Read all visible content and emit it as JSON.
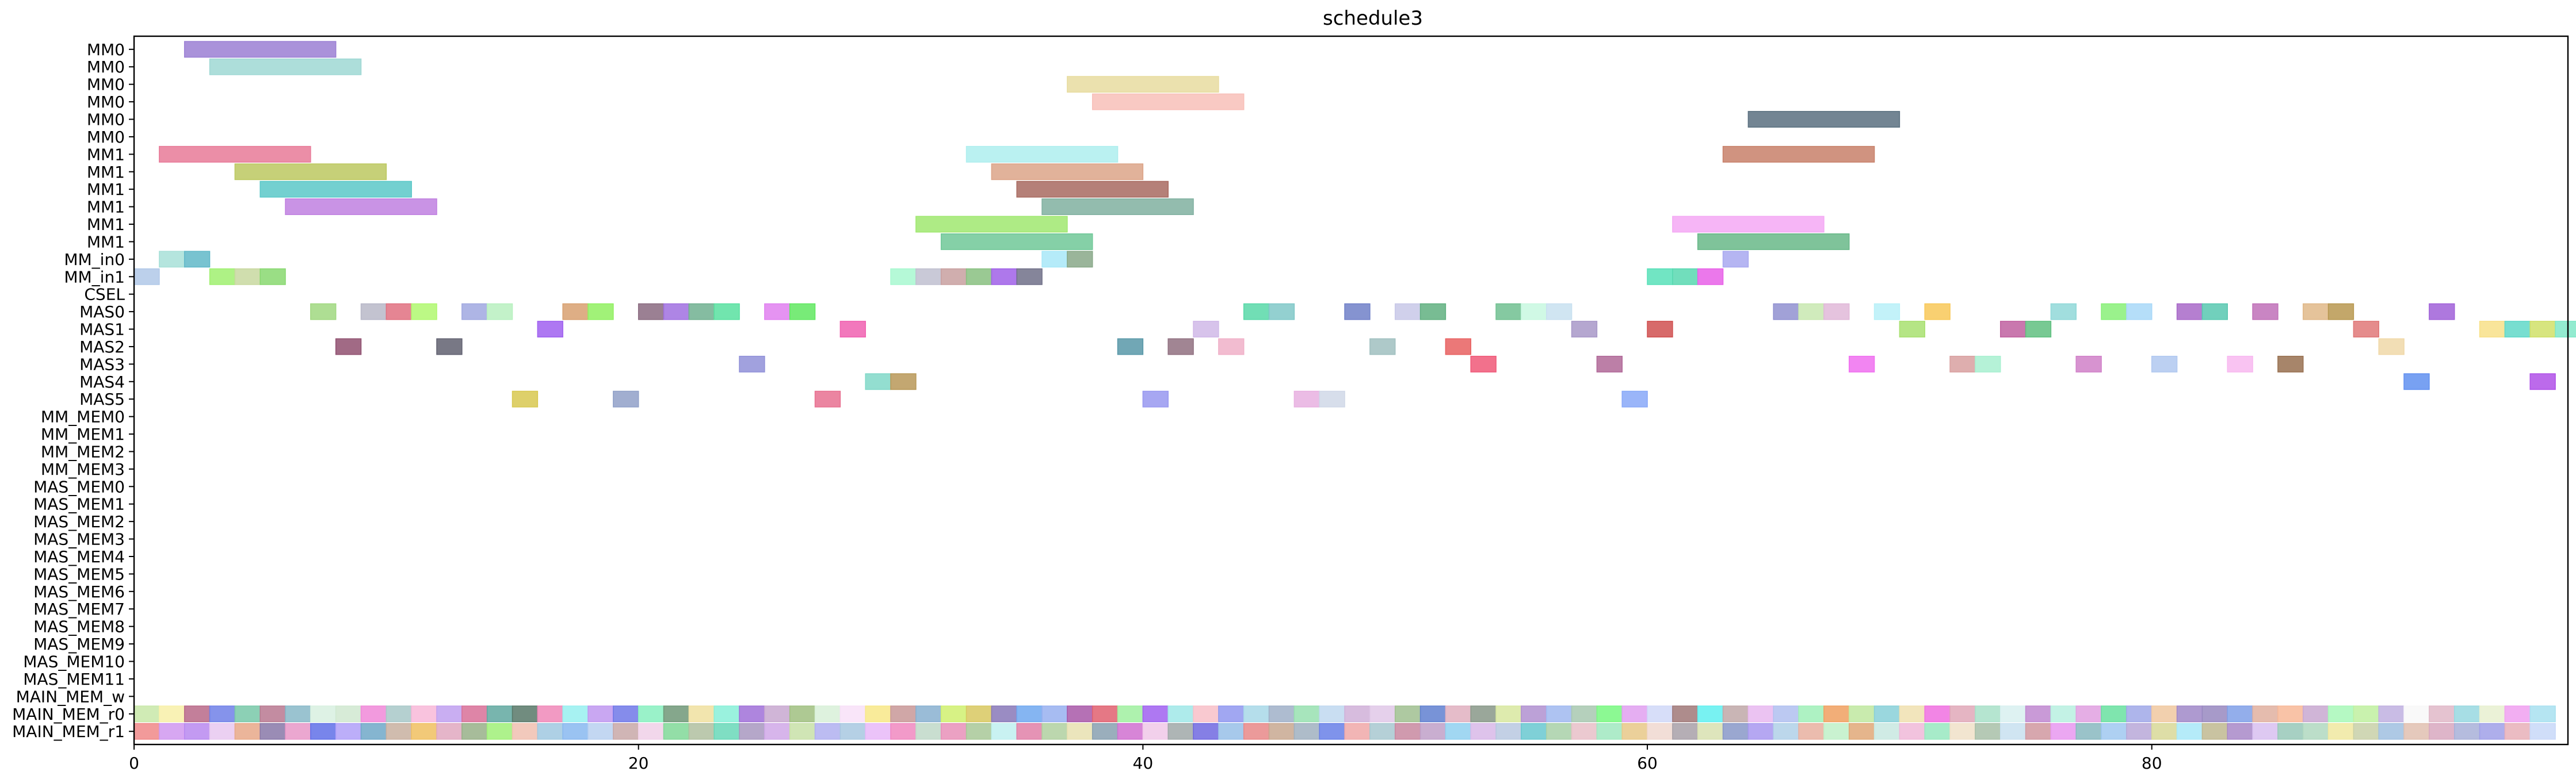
{
  "chart_data": {
    "type": "gantt",
    "title": "schedule3",
    "xlabel": "",
    "ylabel": "",
    "xlim": [
      0,
      96.5
    ],
    "xticks": [
      0,
      20,
      40,
      60,
      80
    ],
    "grid": false,
    "rows": [
      "MM0",
      "MM0",
      "MM0",
      "MM0",
      "MM0",
      "MM0",
      "MM1",
      "MM1",
      "MM1",
      "MM1",
      "MM1",
      "MM1",
      "MM_in0",
      "MM_in1",
      "CSEL",
      "MAS0",
      "MAS1",
      "MAS2",
      "MAS3",
      "MAS4",
      "MAS5",
      "MM_MEM0",
      "MM_MEM1",
      "MM_MEM2",
      "MM_MEM3",
      "MAS_MEM0",
      "MAS_MEM1",
      "MAS_MEM2",
      "MAS_MEM3",
      "MAS_MEM4",
      "MAS_MEM5",
      "MAS_MEM6",
      "MAS_MEM7",
      "MAS_MEM8",
      "MAS_MEM9",
      "MAS_MEM10",
      "MAS_MEM11",
      "MAIN_MEM_w",
      "MAIN_MEM_r0",
      "MAIN_MEM_r1"
    ],
    "tasks": [
      {
        "row": 0,
        "start": 2,
        "end": 8,
        "color": "#9b7fd4"
      },
      {
        "row": 1,
        "start": 3,
        "end": 9,
        "color": "#9fd8d4"
      },
      {
        "row": 2,
        "start": 37,
        "end": 43,
        "color": "#e8dca0"
      },
      {
        "row": 3,
        "start": 38,
        "end": 44,
        "color": "#f8bfb8"
      },
      {
        "row": 4,
        "start": 64,
        "end": 70,
        "color": "#5a7080"
      },
      {
        "row": 6,
        "start": 1,
        "end": 7,
        "color": "#e87a98"
      },
      {
        "row": 6,
        "start": 33,
        "end": 39,
        "color": "#aeeeee"
      },
      {
        "row": 6,
        "start": 63,
        "end": 69,
        "color": "#c8806a"
      },
      {
        "row": 7,
        "start": 4,
        "end": 10,
        "color": "#bcc860"
      },
      {
        "row": 7,
        "start": 34,
        "end": 40,
        "color": "#dca488"
      },
      {
        "row": 8,
        "start": 5,
        "end": 11,
        "color": "#5ac8c8"
      },
      {
        "row": 8,
        "start": 35,
        "end": 41,
        "color": "#a86a60"
      },
      {
        "row": 9,
        "start": 6,
        "end": 12,
        "color": "#c080e0"
      },
      {
        "row": 9,
        "start": 36,
        "end": 42,
        "color": "#80b0a0"
      },
      {
        "row": 10,
        "start": 31,
        "end": 37,
        "color": "#a0e870"
      },
      {
        "row": 10,
        "start": 61,
        "end": 67,
        "color": "#f4a8f4"
      },
      {
        "row": 11,
        "start": 32,
        "end": 38,
        "color": "#70c898"
      },
      {
        "row": 11,
        "start": 62,
        "end": 68,
        "color": "#68b888"
      },
      {
        "row": 12,
        "start": 1,
        "end": 2,
        "color": "#a8e0d8"
      },
      {
        "row": 12,
        "start": 2,
        "end": 3,
        "color": "#60b8c8"
      },
      {
        "row": 12,
        "start": 36,
        "end": 37,
        "color": "#a8e8f8"
      },
      {
        "row": 12,
        "start": 37,
        "end": 38,
        "color": "#88a888"
      },
      {
        "row": 12,
        "start": 63,
        "end": 64,
        "color": "#a8a8f0"
      },
      {
        "row": 13,
        "start": 0,
        "end": 1,
        "color": "#b0c8e8"
      },
      {
        "row": 13,
        "start": 3,
        "end": 4,
        "color": "#a0f070"
      },
      {
        "row": 13,
        "start": 4,
        "end": 5,
        "color": "#c8d8a0"
      },
      {
        "row": 13,
        "start": 5,
        "end": 6,
        "color": "#88d870"
      },
      {
        "row": 13,
        "start": 30,
        "end": 31,
        "color": "#a8f8d0"
      },
      {
        "row": 13,
        "start": 31,
        "end": 32,
        "color": "#c0c0d0"
      },
      {
        "row": 13,
        "start": 32,
        "end": 33,
        "color": "#c8a0a0"
      },
      {
        "row": 13,
        "start": 33,
        "end": 34,
        "color": "#88c080"
      },
      {
        "row": 13,
        "start": 34,
        "end": 35,
        "color": "#a060e8"
      },
      {
        "row": 13,
        "start": 35,
        "end": 36,
        "color": "#707088"
      },
      {
        "row": 13,
        "start": 60,
        "end": 61,
        "color": "#58e0b8"
      },
      {
        "row": 13,
        "start": 61,
        "end": 62,
        "color": "#58d8b0"
      },
      {
        "row": 13,
        "start": 62,
        "end": 63,
        "color": "#e860e8"
      },
      {
        "row": 15,
        "start": 7,
        "end": 8,
        "color": "#a0d880"
      },
      {
        "row": 15,
        "start": 9,
        "end": 10,
        "color": "#b8b8c8"
      },
      {
        "row": 15,
        "start": 10,
        "end": 11,
        "color": "#e07080"
      },
      {
        "row": 15,
        "start": 11,
        "end": 12,
        "color": "#b0f870"
      },
      {
        "row": 15,
        "start": 13,
        "end": 14,
        "color": "#a0a8e0"
      },
      {
        "row": 15,
        "start": 14,
        "end": 15,
        "color": "#b8f0c0"
      },
      {
        "row": 15,
        "start": 17,
        "end": 18,
        "color": "#d8a070"
      },
      {
        "row": 15,
        "start": 18,
        "end": 19,
        "color": "#90f060"
      },
      {
        "row": 15,
        "start": 20,
        "end": 21,
        "color": "#8a6a80"
      },
      {
        "row": 15,
        "start": 21,
        "end": 22,
        "color": "#a070e0"
      },
      {
        "row": 15,
        "start": 22,
        "end": 23,
        "color": "#70b090"
      },
      {
        "row": 15,
        "start": 23,
        "end": 24,
        "color": "#58e0a0"
      },
      {
        "row": 15,
        "start": 25,
        "end": 26,
        "color": "#e080f0"
      },
      {
        "row": 15,
        "start": 26,
        "end": 27,
        "color": "#60e860"
      },
      {
        "row": 15,
        "start": 44,
        "end": 45,
        "color": "#58d8a8"
      },
      {
        "row": 15,
        "start": 45,
        "end": 46,
        "color": "#80c8c8"
      },
      {
        "row": 15,
        "start": 48,
        "end": 49,
        "color": "#7080c8"
      },
      {
        "row": 15,
        "start": 50,
        "end": 51,
        "color": "#c8c8e8"
      },
      {
        "row": 15,
        "start": 51,
        "end": 52,
        "color": "#60b080"
      },
      {
        "row": 15,
        "start": 54,
        "end": 55,
        "color": "#70c090"
      },
      {
        "row": 15,
        "start": 55,
        "end": 56,
        "color": "#c8f8e0"
      },
      {
        "row": 15,
        "start": 56,
        "end": 57,
        "color": "#c8e0f0"
      },
      {
        "row": 15,
        "start": 65,
        "end": 66,
        "color": "#9090d0"
      },
      {
        "row": 15,
        "start": 66,
        "end": 67,
        "color": "#c8e8b0"
      },
      {
        "row": 15,
        "start": 67,
        "end": 68,
        "color": "#e0b8d8"
      },
      {
        "row": 15,
        "start": 69,
        "end": 70,
        "color": "#b8f0f8"
      },
      {
        "row": 15,
        "start": 71,
        "end": 72,
        "color": "#f8c858"
      },
      {
        "row": 15,
        "start": 76,
        "end": 77,
        "color": "#90d8d8"
      },
      {
        "row": 15,
        "start": 78,
        "end": 79,
        "color": "#88f078"
      },
      {
        "row": 15,
        "start": 79,
        "end": 80,
        "color": "#a8d8f8"
      },
      {
        "row": 15,
        "start": 81,
        "end": 82,
        "color": "#a868c8"
      },
      {
        "row": 15,
        "start": 82,
        "end": 83,
        "color": "#58c8b0"
      },
      {
        "row": 15,
        "start": 84,
        "end": 85,
        "color": "#c070b8"
      },
      {
        "row": 15,
        "start": 86,
        "end": 87,
        "color": "#e0b888"
      },
      {
        "row": 15,
        "start": 87,
        "end": 88,
        "color": "#b89850"
      },
      {
        "row": 15,
        "start": 91,
        "end": 92,
        "color": "#a060d8"
      },
      {
        "row": 16,
        "start": 16,
        "end": 17,
        "color": "#a060f0"
      },
      {
        "row": 16,
        "start": 28,
        "end": 29,
        "color": "#f060b0"
      },
      {
        "row": 16,
        "start": 42,
        "end": 43,
        "color": "#d0b8e8"
      },
      {
        "row": 16,
        "start": 57,
        "end": 58,
        "color": "#a898c8"
      },
      {
        "row": 16,
        "start": 60,
        "end": 61,
        "color": "#d05050"
      },
      {
        "row": 16,
        "start": 70,
        "end": 71,
        "color": "#a8e070"
      },
      {
        "row": 16,
        "start": 74,
        "end": 75,
        "color": "#c060a0"
      },
      {
        "row": 16,
        "start": 75,
        "end": 76,
        "color": "#60c080"
      },
      {
        "row": 16,
        "start": 88,
        "end": 89,
        "color": "#e07878"
      },
      {
        "row": 16,
        "start": 93,
        "end": 94,
        "color": "#f8e088"
      },
      {
        "row": 16,
        "start": 94,
        "end": 95,
        "color": "#60d8c8"
      },
      {
        "row": 16,
        "start": 95,
        "end": 96,
        "color": "#d0e068"
      },
      {
        "row": 16,
        "start": 96,
        "end": 97,
        "color": "#80e8c8"
      },
      {
        "row": 17,
        "start": 8,
        "end": 9,
        "color": "#905070"
      },
      {
        "row": 17,
        "start": 12,
        "end": 13,
        "color": "#606070"
      },
      {
        "row": 17,
        "start": 39,
        "end": 40,
        "color": "#5898a8"
      },
      {
        "row": 17,
        "start": 41,
        "end": 42,
        "color": "#907080"
      },
      {
        "row": 17,
        "start": 43,
        "end": 44,
        "color": "#f0b0c8"
      },
      {
        "row": 17,
        "start": 49,
        "end": 50,
        "color": "#a0c0c0"
      },
      {
        "row": 17,
        "start": 52,
        "end": 53,
        "color": "#e86060"
      },
      {
        "row": 17,
        "start": 89,
        "end": 90,
        "color": "#f0d8a8"
      },
      {
        "row": 18,
        "start": 24,
        "end": 25,
        "color": "#9090d8"
      },
      {
        "row": 18,
        "start": 53,
        "end": 54,
        "color": "#f05878"
      },
      {
        "row": 18,
        "start": 58,
        "end": 59,
        "color": "#b06898"
      },
      {
        "row": 18,
        "start": 68,
        "end": 69,
        "color": "#f070f0"
      },
      {
        "row": 18,
        "start": 72,
        "end": 73,
        "color": "#d8a0a0"
      },
      {
        "row": 18,
        "start": 73,
        "end": 74,
        "color": "#a8f0d0"
      },
      {
        "row": 18,
        "start": 77,
        "end": 78,
        "color": "#d080c8"
      },
      {
        "row": 18,
        "start": 80,
        "end": 81,
        "color": "#b0c8f0"
      },
      {
        "row": 18,
        "start": 83,
        "end": 84,
        "color": "#f8b8f0"
      },
      {
        "row": 18,
        "start": 85,
        "end": 86,
        "color": "#987050"
      },
      {
        "row": 19,
        "start": 29,
        "end": 30,
        "color": "#80d8c8"
      },
      {
        "row": 19,
        "start": 30,
        "end": 31,
        "color": "#b89858"
      },
      {
        "row": 19,
        "start": 90,
        "end": 91,
        "color": "#6090f0"
      },
      {
        "row": 19,
        "start": 95,
        "end": 96,
        "color": "#b050e8"
      },
      {
        "row": 20,
        "start": 15,
        "end": 16,
        "color": "#d8c850"
      },
      {
        "row": 20,
        "start": 19,
        "end": 20,
        "color": "#90a0c8"
      },
      {
        "row": 20,
        "start": 27,
        "end": 28,
        "color": "#e87090"
      },
      {
        "row": 20,
        "start": 40,
        "end": 41,
        "color": "#9898f0"
      },
      {
        "row": 20,
        "start": 46,
        "end": 47,
        "color": "#e8b0e0"
      },
      {
        "row": 20,
        "start": 47,
        "end": 48,
        "color": "#d0d8e8"
      },
      {
        "row": 20,
        "start": 59,
        "end": 60,
        "color": "#88a8f8"
      }
    ],
    "main_mem_r0_colors": [
      "#c8e8a8",
      "#f8f0a8",
      "#b86888",
      "#7080e8",
      "#78c8a8",
      "#b87890",
      "#88b8c8",
      "#d8f0e0",
      "#d0e8d0",
      "#f088d8",
      "#a8c8c8",
      "#f8b8d8",
      "#c0a0f0",
      "#d87098",
      "#60a8a0",
      "#587868",
      "#f088b8",
      "#98f0f0",
      "#c098f0",
      "#7078e8",
      "#88f0c0",
      "#709878",
      "#f0e0a0",
      "#88f0d8",
      "#a070d8",
      "#c8a8d0",
      "#a0c080",
      "#d8f0d8",
      "#f8e0f8",
      "#f8e888",
      "#c89898",
      "#88b0d0",
      "#d0f070",
      "#d8c860",
      "#8878b8",
      "#70a8f0",
      "#98b0f0",
      "#a858a8",
      "#e06070",
      "#a0f0a0",
      "#a060f0",
      "#a0e8e8",
      "#f8c0c8",
      "#9098f0",
      "#a8d8e8",
      "#a0b0c8",
      "#98e0b0",
      "#c0d8f0",
      "#d0b0d8",
      "#e0c8e8",
      "#a0c090",
      "#6080d0",
      "#e0b0c0",
      "#889888",
      "#d8e8a0",
      "#b090d0",
      "#a0b8f0",
      "#a8c8b0",
      "#78f880",
      "#e0a0f0",
      "#d0d8f8",
      "#a07878",
      "#60f0f0",
      "#c0a8a8",
      "#e8b8f0",
      "#b0c0f0",
      "#a0f0b8",
      "#f0a060",
      "#c0e8a0",
      "#88d0d8",
      "#f0e0b0",
      "#f070e0",
      "#e0a8b8",
      "#a8e0c8",
      "#d8f0f0",
      "#c088d0",
      "#b8f0e0",
      "#e0a0e0",
      "#68e0a0",
      "#a0a8e8",
      "#f0c8a0",
      "#a088c8",
      "#9888c0",
      "#80a0e8",
      "#e0b0a0",
      "#f8b898",
      "#c8a8d0",
      "#a8f8b8",
      "#c0f0a0",
      "#c0b0e0",
      "#f8f8f8",
      "#e0b8c8",
      "#98d8e0",
      "#e8f0d0",
      "#f0a0f0",
      "#a8e0f0"
    ],
    "main_mem_r1_colors": [
      "#f08888",
      "#d098f0",
      "#b888f0",
      "#e8c8f0",
      "#e8a888",
      "#8878a8",
      "#e898c8",
      "#6070e8",
      "#b0a0f8",
      "#70a8c8",
      "#c8b0a0",
      "#f0c060",
      "#e0a8c0",
      "#98b088",
      "#a0f078",
      "#f0c0b0",
      "#a0c8e0",
      "#88b8f0",
      "#b8d0f0",
      "#c8a8a8",
      "#f0d0e8",
      "#80d898",
      "#b0c0a0",
      "#68d8b8",
      "#a898c0",
      "#d0a8e8",
      "#c8e0a8",
      "#b0b0f0",
      "#a8c8e0",
      "#e8b8f8",
      "#f088c0",
      "#c0d8c8",
      "#e890b8",
      "#a8c898",
      "#c0f0f0",
      "#e080a8",
      "#b0d0a0",
      "#e8e0b0",
      "#88a0b0",
      "#d070d0",
      "#f0c8e8",
      "#a0a8a8",
      "#7068e0",
      "#98c0e8",
      "#e88888",
      "#c8a890",
      "#a0b0c0",
      "#6880e8",
      "#f0a8a8",
      "#a8c8d0",
      "#c888a0",
      "#c0a0c8",
      "#90d0f0",
      "#d8b8e8",
      "#b8c8e0",
      "#68c8d0",
      "#a8d0a8",
      "#e8c0c8",
      "#a0e8c0",
      "#e8c888",
      "#f0d8d0",
      "#a8a0a8",
      "#d8e0b0",
      "#8898c8",
      "#a898f0",
      "#b0d0e8",
      "#e8b0a0",
      "#c0f0c8",
      "#e0a878",
      "#c8e8e0",
      "#f0b8d8",
      "#98e8c0",
      "#f0e0c8",
      "#a8c0a8",
      "#c8e0f0",
      "#d098a0",
      "#e898f0",
      "#88b8c0",
      "#a0c8f0",
      "#b8a8d8",
      "#d8d898",
      "#a8e8f8",
      "#c0b890",
      "#a888c8",
      "#d8c0f0",
      "#98c8b8",
      "#b0d8c0",
      "#f0e8a0",
      "#c8d0a8",
      "#a0c0e0",
      "#e0c0b0",
      "#d8a8c0",
      "#a8b0d8",
      "#a0a0e8",
      "#e8b0b8",
      "#c8d8f8"
    ]
  }
}
